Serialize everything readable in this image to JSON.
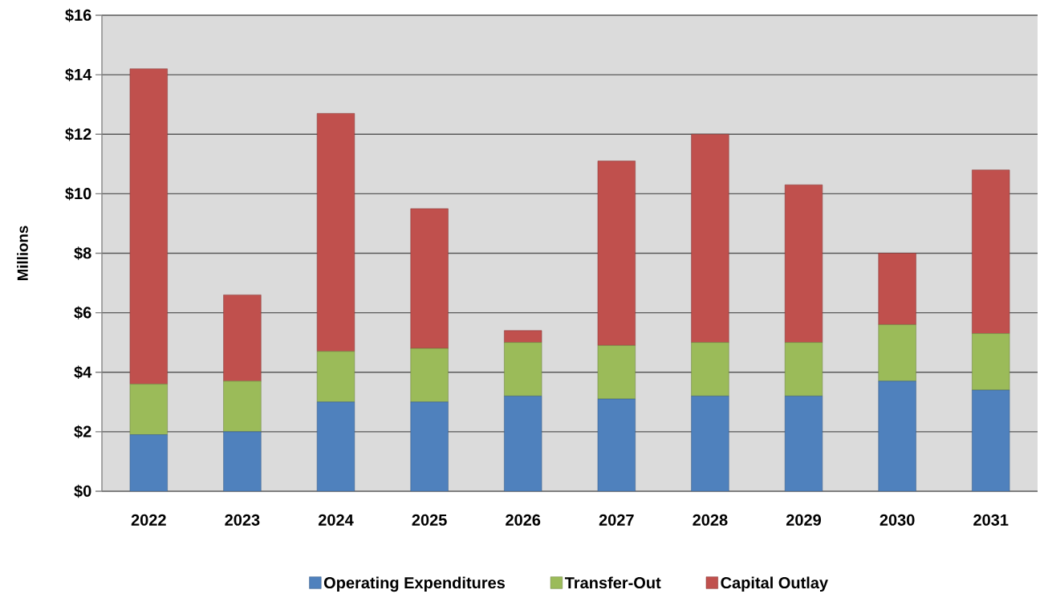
{
  "chart_data": {
    "type": "bar",
    "stacked": true,
    "ylabel": "Millions",
    "categories": [
      "2022",
      "2023",
      "2024",
      "2025",
      "2026",
      "2027",
      "2028",
      "2029",
      "2030",
      "2031"
    ],
    "series": [
      {
        "name": "Operating Expenditures",
        "color": "#4f81bd",
        "values": [
          1.9,
          2.0,
          3.0,
          3.0,
          3.2,
          3.1,
          3.2,
          3.2,
          3.7,
          3.4
        ]
      },
      {
        "name": "Transfer-Out",
        "color": "#9bbb59",
        "values": [
          1.7,
          1.7,
          1.7,
          1.8,
          1.8,
          1.8,
          1.8,
          1.8,
          1.9,
          1.9
        ]
      },
      {
        "name": "Capital Outlay",
        "color": "#c0504d",
        "values": [
          10.6,
          2.9,
          8.0,
          4.7,
          0.4,
          6.2,
          7.0,
          5.3,
          2.4,
          5.5
        ]
      }
    ],
    "ylim": [
      0,
      16
    ],
    "yticks": [
      {
        "value": 0,
        "label": "$0"
      },
      {
        "value": 2,
        "label": "$2"
      },
      {
        "value": 4,
        "label": "$4"
      },
      {
        "value": 6,
        "label": "$6"
      },
      {
        "value": 8,
        "label": "$8"
      },
      {
        "value": 10,
        "label": "$10"
      },
      {
        "value": 12,
        "label": "$12"
      },
      {
        "value": 14,
        "label": "$14"
      },
      {
        "value": 16,
        "label": "$16"
      }
    ],
    "grid": "y",
    "legend": "bottom"
  }
}
